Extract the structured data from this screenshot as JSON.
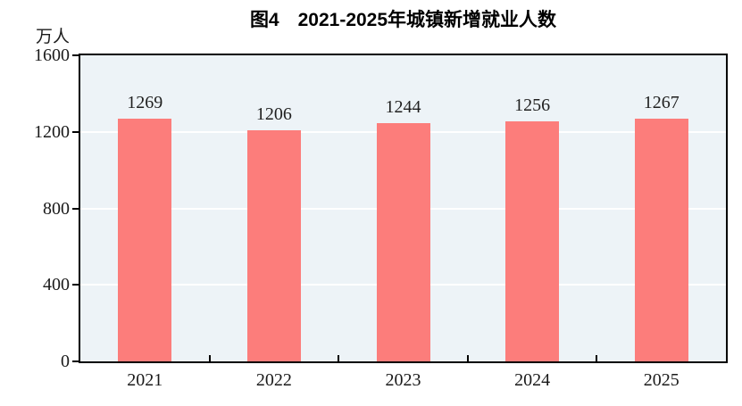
{
  "chart_data": {
    "type": "bar",
    "title": "图4　2021-2025年城镇新增就业人数",
    "unit_label": "万人",
    "categories": [
      "2021",
      "2022",
      "2023",
      "2024",
      "2025"
    ],
    "values": [
      1269,
      1206,
      1244,
      1256,
      1267
    ],
    "value_labels": [
      "1269",
      "1206",
      "1244",
      "1256",
      "1267"
    ],
    "ylim": [
      0,
      1600
    ],
    "yticks": [
      0,
      400,
      800,
      1200,
      1600
    ],
    "grid": true,
    "legend": "none",
    "colors": {
      "bar": "#FC7D7B",
      "plot_background": "#EDF3F7",
      "gridline": "#FFFFFF",
      "axis": "#000000",
      "text": "#1a1a1a"
    }
  }
}
